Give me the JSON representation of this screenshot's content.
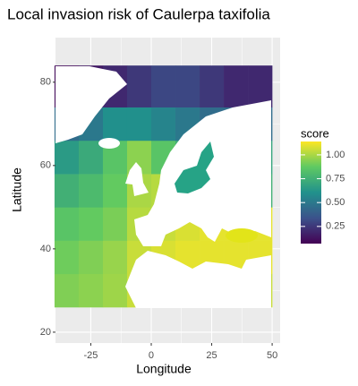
{
  "chart_data": {
    "type": "raster",
    "title": "Local invasion risk of Caulerpa taxifolia",
    "x_label": "Longitude",
    "y_label": "Latitude",
    "xlim": [
      -39.6,
      53.3
    ],
    "ylim": [
      17.4,
      90.7
    ],
    "xticks": [
      -25,
      0,
      25,
      50
    ],
    "yticks": [
      20,
      40,
      60,
      80
    ],
    "grid": true,
    "lon_edges": [
      -40,
      -30,
      -20,
      -10,
      0,
      10,
      20,
      30,
      40,
      50
    ],
    "lat_edges": [
      26,
      34,
      42,
      50,
      58,
      66,
      74,
      84
    ],
    "scores": [
      [
        0.93,
        0.95,
        0.98,
        1.05,
        1.05,
        1.08,
        1.08,
        1.08,
        1.05
      ],
      [
        0.9,
        0.93,
        0.97,
        1.05,
        1.08,
        1.1,
        1.1,
        1.1,
        1.1
      ],
      [
        0.85,
        0.88,
        0.92,
        1.02,
        1.05,
        1.08,
        1.1,
        1.1,
        1.1
      ],
      [
        0.75,
        0.8,
        0.88,
        1.0,
        1.02,
        0.8,
        0.75,
        0.75,
        0.75
      ],
      [
        0.65,
        0.72,
        0.85,
        0.95,
        0.85,
        0.75,
        0.72,
        0.7,
        0.7
      ],
      [
        0.45,
        0.5,
        0.6,
        0.6,
        0.55,
        0.5,
        0.45,
        0.45,
        0.45
      ],
      [
        0.1,
        0.15,
        0.2,
        0.25,
        0.3,
        0.3,
        0.25,
        0.2,
        0.2
      ]
    ],
    "legend": {
      "title": "score",
      "limits": [
        0.07,
        1.14
      ],
      "colors": [
        "#440154",
        "#3b528b",
        "#21918c",
        "#5ec962",
        "#fde725"
      ],
      "ticks": [
        {
          "value": 1,
          "label": "1.00"
        },
        0.75,
        {
          "value": 0.5,
          "label": "0.50"
        },
        0.25
      ]
    }
  }
}
